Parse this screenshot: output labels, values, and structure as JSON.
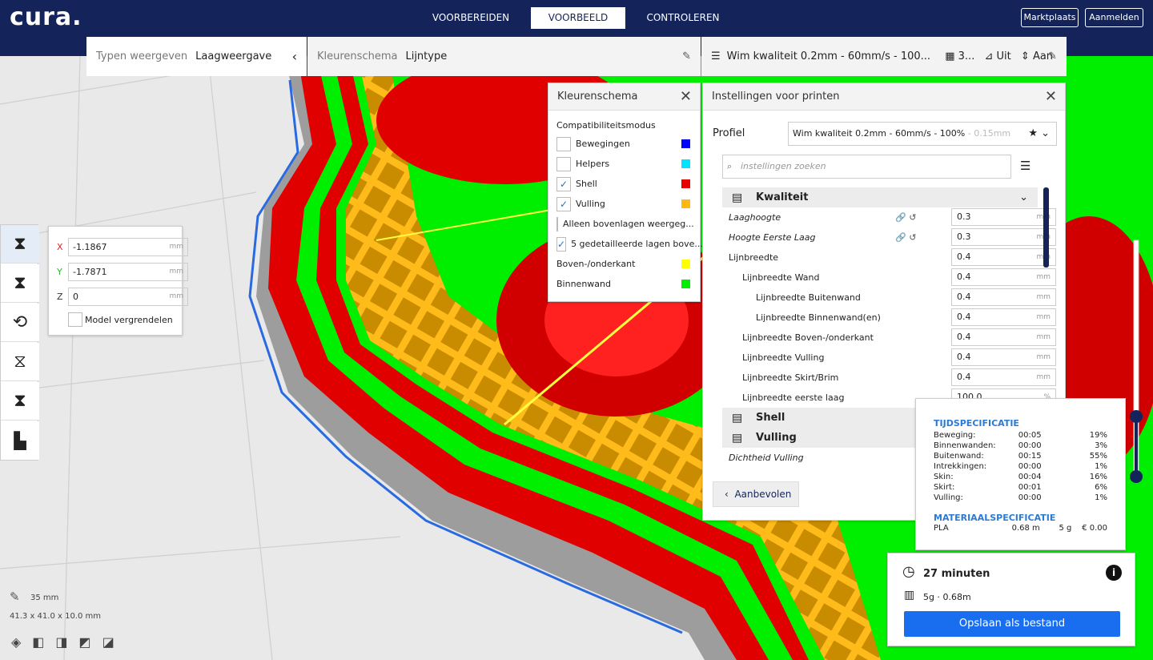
{
  "header": {
    "logo": "cura.",
    "tabs": [
      "VOORBEREIDEN",
      "VOORBEELD",
      "CONTROLEREN"
    ],
    "active_tab": 1,
    "buttons": [
      "Marktplaats",
      "Aanmelden"
    ]
  },
  "toolbar": {
    "view_type_label": "Typen weergeven",
    "view_type": "Laagweergave",
    "color_scheme_label": "Kleurenschema",
    "color_scheme": "Lijntype",
    "profile": "Wim kwaliteit 0.2mm - 60mm/s - 100...",
    "infill": "3...",
    "support": "Uit",
    "adhesion": "Aan"
  },
  "color_panel": {
    "title": "Kleurenschema",
    "mode": "Compatibiliteitsmodus",
    "items": [
      {
        "label": "Bewegingen",
        "checked": false,
        "color": "#0000ff"
      },
      {
        "label": "Helpers",
        "checked": false,
        "color": "#00e5ff"
      },
      {
        "label": "Shell",
        "checked": true,
        "color": "#e80000"
      },
      {
        "label": "Vulling",
        "checked": true,
        "color": "#ffb80d"
      },
      {
        "label": "Alleen bovenlagen weergeg...",
        "checked": false
      },
      {
        "label": "5 gedetailleerde lagen bove...",
        "checked": true
      }
    ],
    "legend": [
      {
        "label": "Boven-/onderkant",
        "color": "#ffff00"
      },
      {
        "label": "Binnenwand",
        "color": "#00ee00"
      }
    ]
  },
  "settings_panel": {
    "title": "Instellingen voor printen",
    "profile_label": "Profiel",
    "profile_value": "Wim kwaliteit 0.2mm - 60mm/s - 100%",
    "profile_layer": "- 0.15mm",
    "search_placeholder": "instellingen zoeken",
    "items": [
      {
        "section": "Kwaliteit"
      },
      {
        "label": "Laaghoogte",
        "value": "0.3",
        "unit": "mm",
        "level": 0,
        "italic": true
      },
      {
        "label": "Hoogte Eerste Laag",
        "value": "0.3",
        "unit": "mm",
        "level": 0,
        "italic": true
      },
      {
        "label": "Lijnbreedte",
        "value": "0.4",
        "unit": "mm",
        "level": 0
      },
      {
        "label": "Lijnbreedte Wand",
        "value": "0.4",
        "unit": "mm",
        "level": 1
      },
      {
        "label": "Lijnbreedte Buitenwand",
        "value": "0.4",
        "unit": "mm",
        "level": 2
      },
      {
        "label": "Lijnbreedte Binnenwand(en)",
        "value": "0.4",
        "unit": "mm",
        "level": 2
      },
      {
        "label": "Lijnbreedte Boven-/onderkant",
        "value": "0.4",
        "unit": "mm",
        "level": 1
      },
      {
        "label": "Lijnbreedte Vulling",
        "value": "0.4",
        "unit": "mm",
        "level": 1
      },
      {
        "label": "Lijnbreedte Skirt/Brim",
        "value": "0.4",
        "unit": "mm",
        "level": 1
      },
      {
        "label": "Lijnbreedte eerste laag",
        "value": "100.0",
        "unit": "%",
        "level": 1
      },
      {
        "section": "Shell"
      },
      {
        "section": "Vulling"
      },
      {
        "label": "Dichtheid Vulling",
        "level": 0,
        "italic": true
      }
    ],
    "button": "Aanbevolen"
  },
  "move_tool": {
    "axes": [
      {
        "axis": "X",
        "value": "-1.1867",
        "unit": "mm",
        "color": "#d9262b"
      },
      {
        "axis": "Y",
        "value": "-1.7871",
        "unit": "mm",
        "color": "#2fb52f"
      },
      {
        "axis": "Z",
        "value": "0",
        "unit": "mm",
        "color": "#333333"
      }
    ],
    "lock": "Model vergrendelen"
  },
  "viewport": {
    "zoom": "35 mm",
    "dimensions": "41.3 x 41.0 x 10.0 mm"
  },
  "print_info": {
    "time_title": "TIJDSPECIFICATIE",
    "time_rows": [
      [
        "Beweging:",
        "00:05",
        "19%"
      ],
      [
        "Binnenwanden:",
        "00:00",
        "3%"
      ],
      [
        "Buitenwand:",
        "00:15",
        "55%"
      ],
      [
        "Intrekkingen:",
        "00:00",
        "1%"
      ],
      [
        "Skin:",
        "00:04",
        "16%"
      ],
      [
        "Skirt:",
        "00:01",
        "6%"
      ],
      [
        "Vulling:",
        "00:00",
        "1%"
      ]
    ],
    "material_title": "MATERIAALSPECIFICATIE",
    "material_row": [
      "PLA",
      "0.68 m",
      "5 g",
      "€ 0.00"
    ],
    "time": "27 minuten",
    "material": "5g · 0.68m",
    "save": "Opslaan als bestand"
  }
}
